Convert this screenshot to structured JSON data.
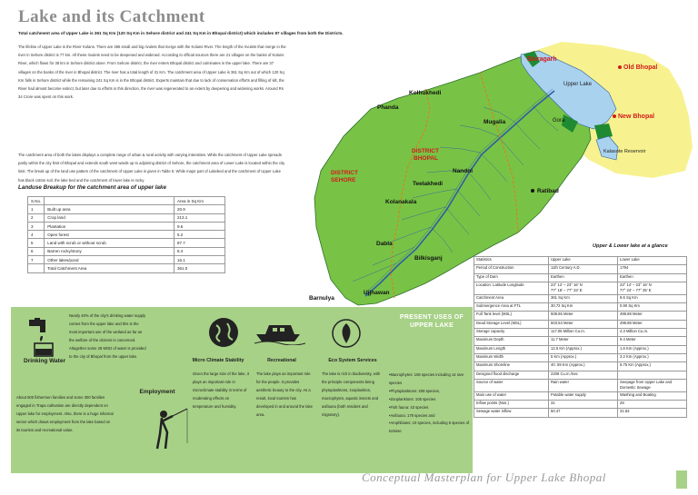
{
  "header": {
    "title": "Lake and its Catchment",
    "subtitle": "Total catchment area of Upper Lake is 361 Sq Km (120 Sq Km in Sehore district and 241 Sq Km in Bhopal district) which includes 87 villages from both the Districts.",
    "intro": "The lifeline of Upper Lake is the River Kolans. There are 365 small and big rivulets that merge with the Kolans River. The length of the rivulets that merge in the river in Sehore district is 77 km. All these rivulets need to be deepened and widened. According to official sources there are 21 villages on the banks of Kolans River, which flows for 38 km in Sehore district alone. From Sehore district, the river enters Bhopal district and culminates in the upper lake. There are 37 villages on the banks of the river in Bhopal district. The river has a total length of 31 Km. The catchment area of Upper Lake is 361 Sq Km out of which 120 Sq Km falls in Sehore district while the remaining 241 Sq Km is in the Bhopal district. Experts maintain that due to lack of conservation efforts and filling of silt, the River had almost become extinct, but later due to efforts in this direction, the river was regenerated to an extent by deepening and widening works. Around Rs 34 Crore was spent on this work.",
    "intro2": "The catchment area of both the lakes displays a complete range of urban & rural activity with varying intensities. While the catchment of Upper Lake spreads partly within the city limit of Bhopal and extends south west wards up to adjoining district of Sehore, the catchment area of Lower Lake is located within the city limit. The break up of the land use pattern of the catchment of Upper Lake is given in Table 5. While major part of Lakebed and the catchment of Upper Lake has black cotton soil, the lake bed and the catchment of lower lake is rocky"
  },
  "landuse": {
    "title": "Landuse Breakup for the catchment area of upper lake",
    "header": [
      "S.No.",
      "",
      "Area in Sq Km"
    ],
    "rows": [
      [
        "1",
        "Built up area",
        "20.9"
      ],
      [
        "2",
        "Crop land",
        "213.1"
      ],
      [
        "3",
        "Plantation",
        "9.6"
      ],
      [
        "4",
        "Open forest",
        "5.2"
      ],
      [
        "5",
        "Land with scrub or without scrub",
        "87.7"
      ],
      [
        "6",
        "Barren rocky/stony",
        "8.4"
      ],
      [
        "7",
        "Other lakes/pond",
        "16.1"
      ],
      [
        "",
        "Total Catchment Area",
        "361.0"
      ]
    ]
  },
  "map": {
    "places": [
      "Bairagarh",
      "Old Bhopal",
      "Upper Lake",
      "Kolhukhedi",
      "Phanda",
      "Mugalia",
      "Gora",
      "New Bhopal",
      "Kalasote Reservoir",
      "DISTRICT BHOPAL",
      "DISTRICT SEHORE",
      "Nandni",
      "Teelakhedi",
      "Ratibad",
      "Kolanakala",
      "Dabla",
      "Bilkisganj",
      "Barnulya",
      "Ujjhawan"
    ],
    "colors": {
      "catchment": "#78c346",
      "forest": "#1f8a32",
      "lake": "#a9d2ef",
      "urban": "#f7f28f",
      "river": "#2f5fa0",
      "boundary": "#e67818",
      "label_red": "#d21a1a"
    }
  },
  "glance": {
    "title": "Upper & Lower lake at a glance",
    "rows": [
      [
        "Statistics",
        "Upper Lake",
        "Lower Lake"
      ],
      [
        "Period of Construction",
        "11th Century A.D.",
        "1794"
      ],
      [
        "Type of Dam",
        "Earthen",
        "Earthen"
      ],
      [
        "Location: Latitude Longitude",
        "23° 12' – 23° 16' N\n77° 18' – 77° 23' E",
        "23° 14' – 23° 16' N\n77° 24' – 77° 25' E"
      ],
      [
        "Catchment Area",
        "361 Sq Km",
        "9.6 Sq Km"
      ],
      [
        "Submergence Area at FTL",
        "30.72 Sq Km",
        "0.90 Sq Km"
      ],
      [
        "Full Tank level (MSL)",
        "508.65 Meter",
        "499.88 Meter"
      ],
      [
        "Dead Storage Level (MSL)",
        "503.53 Meter",
        "499.88 Meter"
      ],
      [
        "Storage capacity",
        "117.05 Million Cu.m.",
        "4.3 Million Cu.m."
      ],
      [
        "Maximum Depth",
        "11.7 Meter",
        "9.4 Meter"
      ],
      [
        "Maximum Length",
        "12.5 Km (Approx.)",
        "1.6 Km (Approx.)"
      ],
      [
        "Maximum Width",
        "5 Km (Approx.)",
        "3.2 Km (Approx.)"
      ],
      [
        "Maximum Shoreline",
        "40. 59 Km (Approx.)",
        "5.75 Km (Approx.)"
      ],
      [
        "Designed flood discharge",
        "2208 Cu.m./Sec",
        ""
      ],
      [
        "Source of water",
        "Rain water",
        "Seepage from Upper Lake and Domestic Sewage"
      ],
      [
        "Main use of water",
        "Potable water supply",
        "Washing and Boating"
      ],
      [
        "Inflow points (Nos.)",
        "31",
        "28"
      ],
      [
        "Sewage water inflow",
        "50.47",
        "31.63"
      ]
    ]
  },
  "uses": {
    "present_title": "PRESENT USES OF UPPER LAKE",
    "drinking_water": {
      "heading": "Drinking Water",
      "text": "Nearly 40% of the city's drinking water supply comes from the upper lake and this is the most important use of the wetland as far as the welfare of the citizens is concerned. Altogether some 28 MGD of water is provided to the city of Bhopal from the upper lake."
    },
    "employment": {
      "heading": "Employment",
      "text": "About 500 fishermen families and some 300 families engaged in Trapa cultivation are directly dependent on Upper lake for employment. Also, there is a huge informal sector which draws employment from the lake based on its tourism and recreational value."
    },
    "micro_climate": {
      "heading": "Micro Climate Stability",
      "text": "Given the large size of the lake, it plays an important role in microclimate stability in terms of moderating effects on temperature and humidity."
    },
    "recreational": {
      "heading": "Recreational",
      "text": "The lake plays an important role for the people. It provides aesthetic beauty to the city. As a result, local tourism has developed in and around the lake area."
    },
    "eco_system": {
      "heading": "Eco System Services",
      "text": "The lake is rich in biodiversity, with the principle components being phytoplanktons, zooplankton, macrophytes, aquatic insects and avifauna (both resident and migratory)."
    },
    "species": [
      "Macrophytes: 106 species including 14 rare species",
      "Phytoplanktons: 208 species,",
      "Zooplanktons: 105 species",
      "Fish fauna: 43 species",
      "Avifauna: 179 species and",
      "Amphibians: 10 species, including 5 species of tortoise"
    ]
  },
  "footer": {
    "text": "Conceptual Masterplan for Upper Lake Bhopal"
  }
}
